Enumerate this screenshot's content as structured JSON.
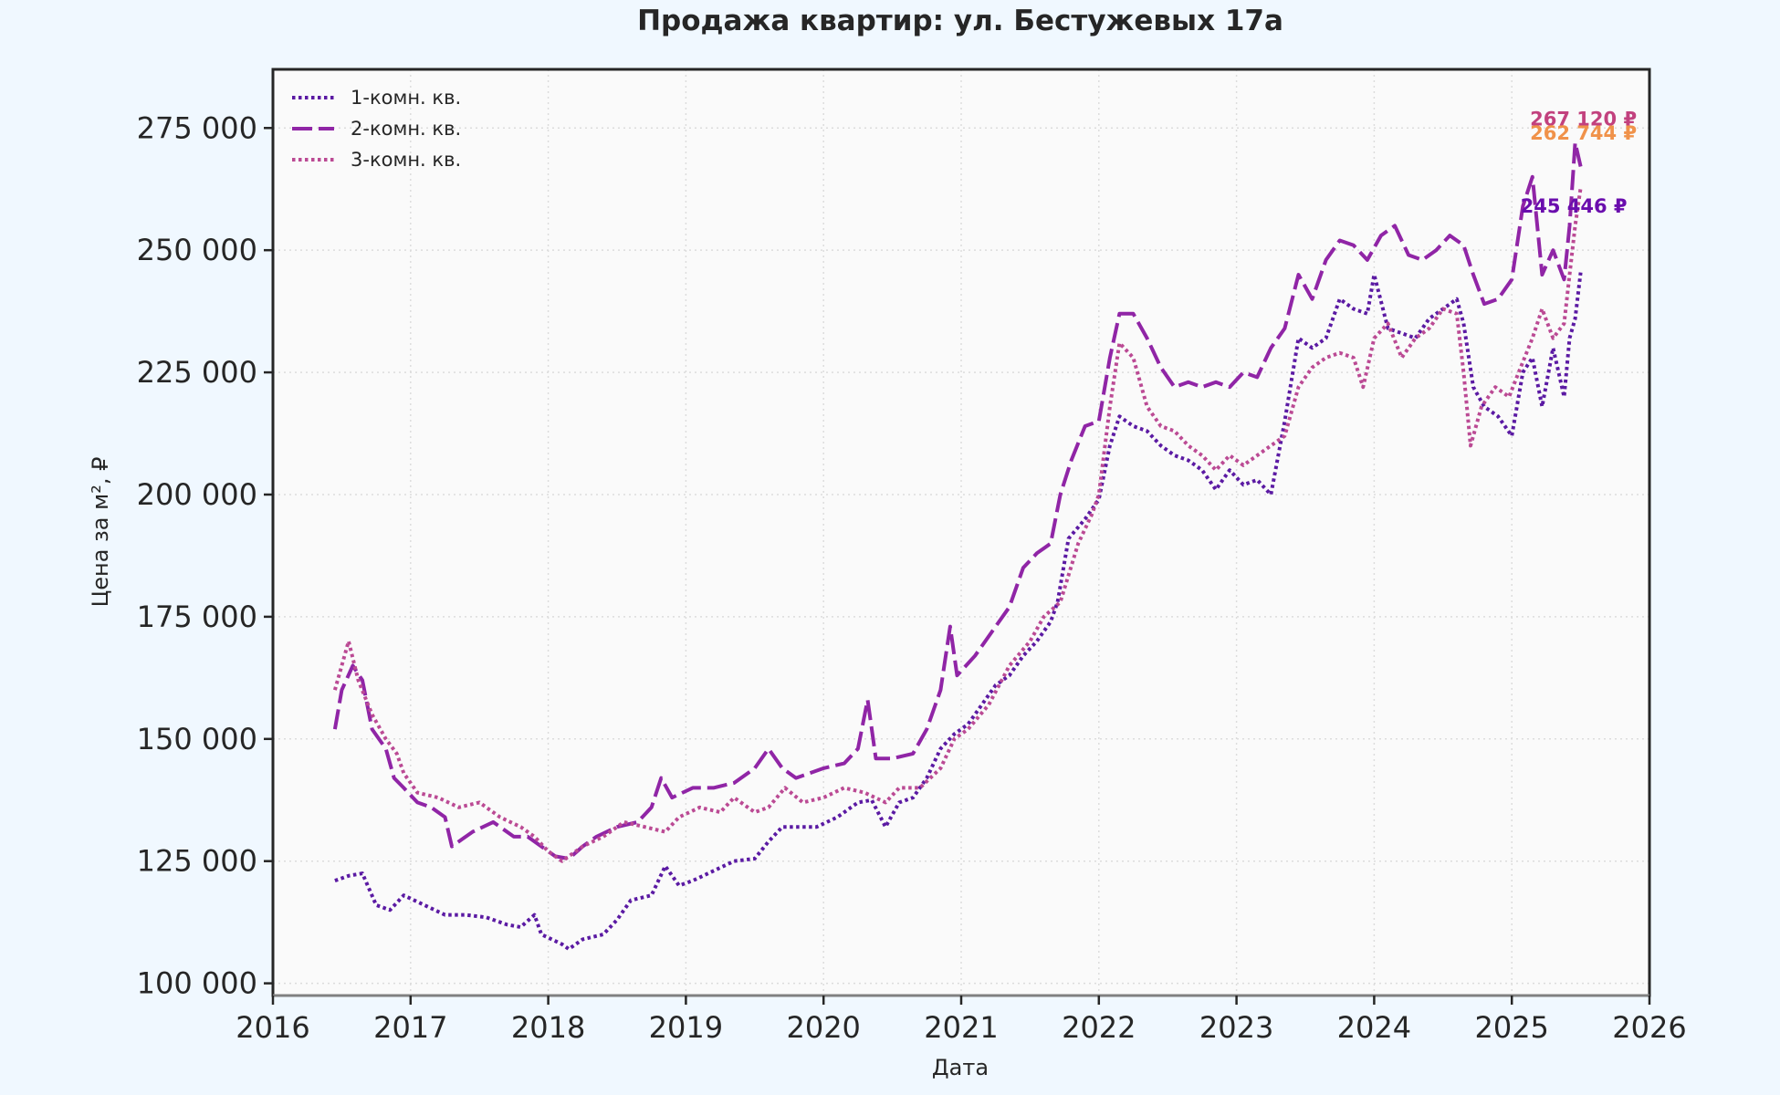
{
  "chart_data": {
    "type": "line",
    "title": "Продажа квартир: ул. Бестужевых 17а",
    "xlabel": "Дата",
    "ylabel": "Цена за м², ₽",
    "xlim": [
      2016.0,
      2026.0
    ],
    "ylim": [
      97500,
      287000
    ],
    "x_ticks": [
      2016,
      2017,
      2018,
      2019,
      2020,
      2021,
      2022,
      2023,
      2024,
      2025,
      2026
    ],
    "x_tick_labels": [
      "2016",
      "2017",
      "2018",
      "2019",
      "2020",
      "2021",
      "2022",
      "2023",
      "2024",
      "2025",
      "2026"
    ],
    "y_ticks": [
      100000,
      125000,
      150000,
      175000,
      200000,
      225000,
      250000,
      275000
    ],
    "y_tick_labels": [
      "100 000",
      "125 000",
      "150 000",
      "175 000",
      "200 000",
      "225 000",
      "250 000",
      "275 000"
    ],
    "grid": true,
    "legend_position": "top-left",
    "series": [
      {
        "name": "1-комн. кв.",
        "color": "#5b1aa3",
        "dash": "dotted",
        "points": [
          [
            2016.45,
            121000
          ],
          [
            2016.55,
            122000
          ],
          [
            2016.65,
            122500
          ],
          [
            2016.75,
            116000
          ],
          [
            2016.85,
            115000
          ],
          [
            2016.95,
            118000
          ],
          [
            2017.1,
            116000
          ],
          [
            2017.25,
            114000
          ],
          [
            2017.4,
            114000
          ],
          [
            2017.55,
            113500
          ],
          [
            2017.7,
            112000
          ],
          [
            2017.8,
            111500
          ],
          [
            2017.9,
            114000
          ],
          [
            2017.95,
            110000
          ],
          [
            2018.1,
            108000
          ],
          [
            2018.15,
            107000
          ],
          [
            2018.25,
            109000
          ],
          [
            2018.4,
            110000
          ],
          [
            2018.5,
            113000
          ],
          [
            2018.6,
            117000
          ],
          [
            2018.75,
            118000
          ],
          [
            2018.85,
            124000
          ],
          [
            2018.95,
            120000
          ],
          [
            2019.05,
            121000
          ],
          [
            2019.2,
            123000
          ],
          [
            2019.35,
            125000
          ],
          [
            2019.5,
            125500
          ],
          [
            2019.6,
            129000
          ],
          [
            2019.7,
            132000
          ],
          [
            2019.85,
            132000
          ],
          [
            2019.95,
            132000
          ],
          [
            2020.1,
            134000
          ],
          [
            2020.25,
            137000
          ],
          [
            2020.35,
            137500
          ],
          [
            2020.45,
            132000
          ],
          [
            2020.55,
            137000
          ],
          [
            2020.65,
            138000
          ],
          [
            2020.75,
            142000
          ],
          [
            2020.85,
            148000
          ],
          [
            2020.95,
            151000
          ],
          [
            2021.05,
            153000
          ],
          [
            2021.15,
            157000
          ],
          [
            2021.25,
            161000
          ],
          [
            2021.35,
            163000
          ],
          [
            2021.45,
            167000
          ],
          [
            2021.55,
            170000
          ],
          [
            2021.65,
            174000
          ],
          [
            2021.7,
            178000
          ],
          [
            2021.78,
            191000
          ],
          [
            2021.9,
            195000
          ],
          [
            2022.0,
            199000
          ],
          [
            2022.08,
            210000
          ],
          [
            2022.15,
            216000
          ],
          [
            2022.25,
            214000
          ],
          [
            2022.35,
            213000
          ],
          [
            2022.45,
            210000
          ],
          [
            2022.55,
            208000
          ],
          [
            2022.65,
            207000
          ],
          [
            2022.75,
            205000
          ],
          [
            2022.85,
            201000
          ],
          [
            2022.95,
            205000
          ],
          [
            2023.05,
            202000
          ],
          [
            2023.15,
            203000
          ],
          [
            2023.25,
            200000
          ],
          [
            2023.35,
            215000
          ],
          [
            2023.45,
            232000
          ],
          [
            2023.55,
            230000
          ],
          [
            2023.65,
            232000
          ],
          [
            2023.75,
            240000
          ],
          [
            2023.85,
            238000
          ],
          [
            2023.95,
            237000
          ],
          [
            2024.0,
            245000
          ],
          [
            2024.1,
            234000
          ],
          [
            2024.2,
            233000
          ],
          [
            2024.3,
            232000
          ],
          [
            2024.4,
            236000
          ],
          [
            2024.5,
            238000
          ],
          [
            2024.6,
            240000
          ],
          [
            2024.65,
            235000
          ],
          [
            2024.72,
            222000
          ],
          [
            2024.8,
            218000
          ],
          [
            2024.9,
            216000
          ],
          [
            2025.0,
            212000
          ],
          [
            2025.08,
            225000
          ],
          [
            2025.15,
            228000
          ],
          [
            2025.22,
            218000
          ],
          [
            2025.3,
            230000
          ],
          [
            2025.38,
            220000
          ],
          [
            2025.42,
            232000
          ],
          [
            2025.46,
            236000
          ],
          [
            2025.5,
            245446
          ]
        ]
      },
      {
        "name": "2-комн. кв.",
        "color": "#9025a6",
        "dash": "dashed",
        "points": [
          [
            2016.45,
            152000
          ],
          [
            2016.5,
            160000
          ],
          [
            2016.58,
            165000
          ],
          [
            2016.65,
            162000
          ],
          [
            2016.72,
            152000
          ],
          [
            2016.82,
            148000
          ],
          [
            2016.88,
            142000
          ],
          [
            2016.95,
            140000
          ],
          [
            2017.05,
            137000
          ],
          [
            2017.15,
            136000
          ],
          [
            2017.25,
            134000
          ],
          [
            2017.3,
            128000
          ],
          [
            2017.45,
            131000
          ],
          [
            2017.6,
            133000
          ],
          [
            2017.75,
            130000
          ],
          [
            2017.85,
            130000
          ],
          [
            2017.95,
            128000
          ],
          [
            2018.05,
            126000
          ],
          [
            2018.15,
            125500
          ],
          [
            2018.25,
            128000
          ],
          [
            2018.35,
            130000
          ],
          [
            2018.5,
            132000
          ],
          [
            2018.65,
            133000
          ],
          [
            2018.75,
            136000
          ],
          [
            2018.82,
            142000
          ],
          [
            2018.9,
            138000
          ],
          [
            2019.05,
            140000
          ],
          [
            2019.2,
            140000
          ],
          [
            2019.35,
            141000
          ],
          [
            2019.5,
            144000
          ],
          [
            2019.6,
            148000
          ],
          [
            2019.7,
            144000
          ],
          [
            2019.8,
            142000
          ],
          [
            2019.9,
            143000
          ],
          [
            2020.0,
            144000
          ],
          [
            2020.15,
            145000
          ],
          [
            2020.25,
            148000
          ],
          [
            2020.32,
            158000
          ],
          [
            2020.38,
            146000
          ],
          [
            2020.5,
            146000
          ],
          [
            2020.65,
            147000
          ],
          [
            2020.75,
            152000
          ],
          [
            2020.85,
            160000
          ],
          [
            2020.92,
            173000
          ],
          [
            2020.97,
            163000
          ],
          [
            2021.1,
            167000
          ],
          [
            2021.25,
            173000
          ],
          [
            2021.35,
            177000
          ],
          [
            2021.45,
            185000
          ],
          [
            2021.55,
            188000
          ],
          [
            2021.65,
            190000
          ],
          [
            2021.72,
            200000
          ],
          [
            2021.8,
            207000
          ],
          [
            2021.9,
            214000
          ],
          [
            2022.0,
            215000
          ],
          [
            2022.08,
            228000
          ],
          [
            2022.15,
            237000
          ],
          [
            2022.25,
            237000
          ],
          [
            2022.35,
            232000
          ],
          [
            2022.45,
            226000
          ],
          [
            2022.55,
            222000
          ],
          [
            2022.65,
            223000
          ],
          [
            2022.75,
            222000
          ],
          [
            2022.85,
            223000
          ],
          [
            2022.95,
            222000
          ],
          [
            2023.05,
            225000
          ],
          [
            2023.15,
            224000
          ],
          [
            2023.25,
            230000
          ],
          [
            2023.35,
            234000
          ],
          [
            2023.45,
            245000
          ],
          [
            2023.55,
            240000
          ],
          [
            2023.65,
            248000
          ],
          [
            2023.75,
            252000
          ],
          [
            2023.85,
            251000
          ],
          [
            2023.95,
            248000
          ],
          [
            2024.05,
            253000
          ],
          [
            2024.15,
            255000
          ],
          [
            2024.25,
            249000
          ],
          [
            2024.35,
            248000
          ],
          [
            2024.45,
            250000
          ],
          [
            2024.55,
            253000
          ],
          [
            2024.65,
            251000
          ],
          [
            2024.72,
            245000
          ],
          [
            2024.8,
            239000
          ],
          [
            2024.9,
            240000
          ],
          [
            2025.0,
            244000
          ],
          [
            2025.08,
            259000
          ],
          [
            2025.15,
            265000
          ],
          [
            2025.22,
            245000
          ],
          [
            2025.3,
            250000
          ],
          [
            2025.38,
            244000
          ],
          [
            2025.42,
            255000
          ],
          [
            2025.46,
            272000
          ],
          [
            2025.5,
            267120
          ]
        ]
      },
      {
        "name": "3-комн. кв.",
        "color": "#bb4a94",
        "dash": "dotted",
        "points": [
          [
            2016.45,
            160000
          ],
          [
            2016.55,
            170000
          ],
          [
            2016.62,
            162000
          ],
          [
            2016.72,
            155000
          ],
          [
            2016.82,
            150000
          ],
          [
            2016.9,
            147000
          ],
          [
            2016.95,
            143000
          ],
          [
            2017.05,
            139000
          ],
          [
            2017.2,
            138000
          ],
          [
            2017.35,
            136000
          ],
          [
            2017.5,
            137000
          ],
          [
            2017.65,
            134000
          ],
          [
            2017.8,
            132000
          ],
          [
            2017.9,
            130000
          ],
          [
            2018.0,
            127000
          ],
          [
            2018.1,
            125000
          ],
          [
            2018.25,
            128000
          ],
          [
            2018.4,
            130000
          ],
          [
            2018.55,
            133000
          ],
          [
            2018.7,
            132000
          ],
          [
            2018.85,
            131000
          ],
          [
            2018.95,
            134000
          ],
          [
            2019.1,
            136000
          ],
          [
            2019.25,
            135000
          ],
          [
            2019.35,
            138000
          ],
          [
            2019.5,
            135000
          ],
          [
            2019.6,
            136000
          ],
          [
            2019.72,
            140000
          ],
          [
            2019.85,
            137000
          ],
          [
            2020.0,
            138000
          ],
          [
            2020.15,
            140000
          ],
          [
            2020.3,
            139000
          ],
          [
            2020.45,
            137000
          ],
          [
            2020.55,
            140000
          ],
          [
            2020.7,
            140000
          ],
          [
            2020.85,
            144000
          ],
          [
            2020.95,
            150000
          ],
          [
            2021.05,
            152000
          ],
          [
            2021.2,
            157000
          ],
          [
            2021.35,
            165000
          ],
          [
            2021.5,
            170000
          ],
          [
            2021.6,
            175000
          ],
          [
            2021.72,
            178000
          ],
          [
            2021.85,
            190000
          ],
          [
            2021.95,
            196000
          ],
          [
            2022.0,
            200000
          ],
          [
            2022.08,
            218000
          ],
          [
            2022.15,
            231000
          ],
          [
            2022.25,
            228000
          ],
          [
            2022.35,
            218000
          ],
          [
            2022.45,
            214000
          ],
          [
            2022.55,
            213000
          ],
          [
            2022.65,
            210000
          ],
          [
            2022.75,
            208000
          ],
          [
            2022.85,
            205000
          ],
          [
            2022.95,
            208000
          ],
          [
            2023.05,
            206000
          ],
          [
            2023.15,
            208000
          ],
          [
            2023.25,
            210000
          ],
          [
            2023.35,
            212000
          ],
          [
            2023.45,
            222000
          ],
          [
            2023.55,
            226000
          ],
          [
            2023.65,
            228000
          ],
          [
            2023.75,
            229000
          ],
          [
            2023.85,
            228000
          ],
          [
            2023.92,
            222000
          ],
          [
            2024.0,
            232000
          ],
          [
            2024.1,
            235000
          ],
          [
            2024.2,
            228000
          ],
          [
            2024.3,
            232000
          ],
          [
            2024.4,
            234000
          ],
          [
            2024.5,
            238000
          ],
          [
            2024.6,
            237000
          ],
          [
            2024.65,
            225000
          ],
          [
            2024.7,
            210000
          ],
          [
            2024.78,
            218000
          ],
          [
            2024.88,
            222000
          ],
          [
            2024.98,
            220000
          ],
          [
            2025.05,
            225000
          ],
          [
            2025.15,
            232000
          ],
          [
            2025.22,
            238000
          ],
          [
            2025.3,
            232000
          ],
          [
            2025.38,
            235000
          ],
          [
            2025.42,
            245000
          ],
          [
            2025.46,
            255000
          ],
          [
            2025.5,
            262744
          ]
        ]
      }
    ],
    "end_labels": [
      {
        "text": "267 120 ₽",
        "color": "#c2417e",
        "x": 2025.52,
        "y": 275500
      },
      {
        "text": "262 744 ₽",
        "color": "#f0924a",
        "x": 2025.52,
        "y": 272600
      },
      {
        "text": "245 446 ₽",
        "color": "#6a0dad",
        "x": 2025.45,
        "y": 257700
      }
    ]
  }
}
